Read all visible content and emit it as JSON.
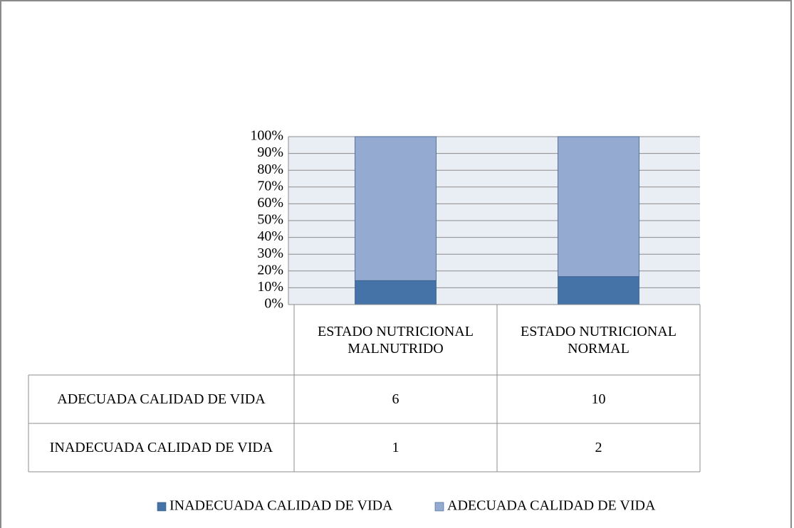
{
  "chart_data": {
    "type": "bar",
    "stacking": "percent",
    "categories": [
      "ESTADO NUTRICIONAL MALNUTRIDO",
      "ESTADO NUTRICIONAL NORMAL"
    ],
    "series": [
      {
        "name": "INADECUADA CALIDAD DE VIDA",
        "color": "#4572a7",
        "values": [
          1,
          2
        ]
      },
      {
        "name": "ADECUADA CALIDAD DE VIDA",
        "color": "#95aad1",
        "values": [
          6,
          10
        ]
      }
    ],
    "ylim": [
      0,
      100
    ],
    "yticks": [
      {
        "value": 0,
        "label": "0%"
      },
      {
        "value": 10,
        "label": "10%"
      },
      {
        "value": 20,
        "label": "20%"
      },
      {
        "value": 30,
        "label": "30%"
      },
      {
        "value": 40,
        "label": "40%"
      },
      {
        "value": 50,
        "label": "50%"
      },
      {
        "value": 60,
        "label": "60%"
      },
      {
        "value": 70,
        "label": "70%"
      },
      {
        "value": 80,
        "label": "80%"
      },
      {
        "value": 90,
        "label": "90%"
      },
      {
        "value": 100,
        "label": "100%"
      }
    ],
    "grid": true,
    "data_table": true,
    "legend": "bottom"
  }
}
